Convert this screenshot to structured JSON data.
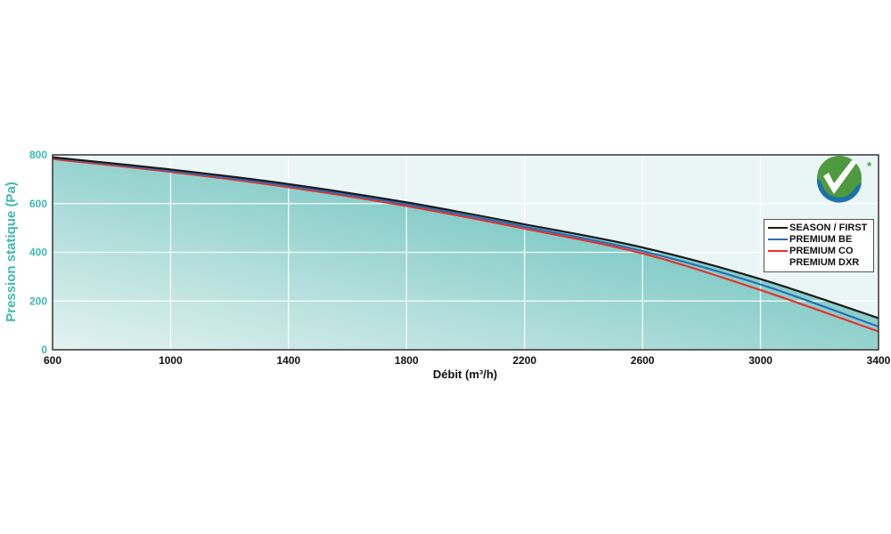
{
  "chart_data": {
    "type": "line",
    "title": "",
    "xlabel": "Débit (m³/h)",
    "ylabel": "Pression statique (Pa)",
    "xlim": [
      600,
      3400
    ],
    "ylim": [
      0,
      800
    ],
    "xticks": [
      600,
      1000,
      1400,
      1800,
      2200,
      2600,
      3000,
      3400
    ],
    "yticks": [
      0,
      200,
      400,
      600,
      800
    ],
    "grid": true,
    "legend_position": "top-right",
    "x": [
      600,
      1000,
      1400,
      1800,
      2200,
      2600,
      3000,
      3400
    ],
    "series": [
      {
        "name": "SEASON / FIRST",
        "color": "#1a1a1a",
        "values": [
          790,
          740,
          680,
          605,
          515,
          420,
          290,
          130
        ]
      },
      {
        "name": "PREMIUM BE",
        "color": "#2a6db5",
        "values": [
          788,
          735,
          673,
          597,
          505,
          405,
          268,
          95
        ]
      },
      {
        "name": "PREMIUM CO\nPREMIUM DXR",
        "color": "#e8312a",
        "values": [
          783,
          730,
          667,
          590,
          497,
          395,
          245,
          75
        ]
      }
    ],
    "colors": {
      "axis_label": "#3fb8b0",
      "fill_dark": "#3dbab6",
      "fill_light": "#e3f2f1",
      "background": "#eaf6f5"
    }
  },
  "legend": {
    "items": [
      "SEASON / FIRST",
      "PREMIUM BE",
      "PREMIUM CO",
      "PREMIUM DXR"
    ]
  },
  "logo": {
    "mark": "*"
  }
}
